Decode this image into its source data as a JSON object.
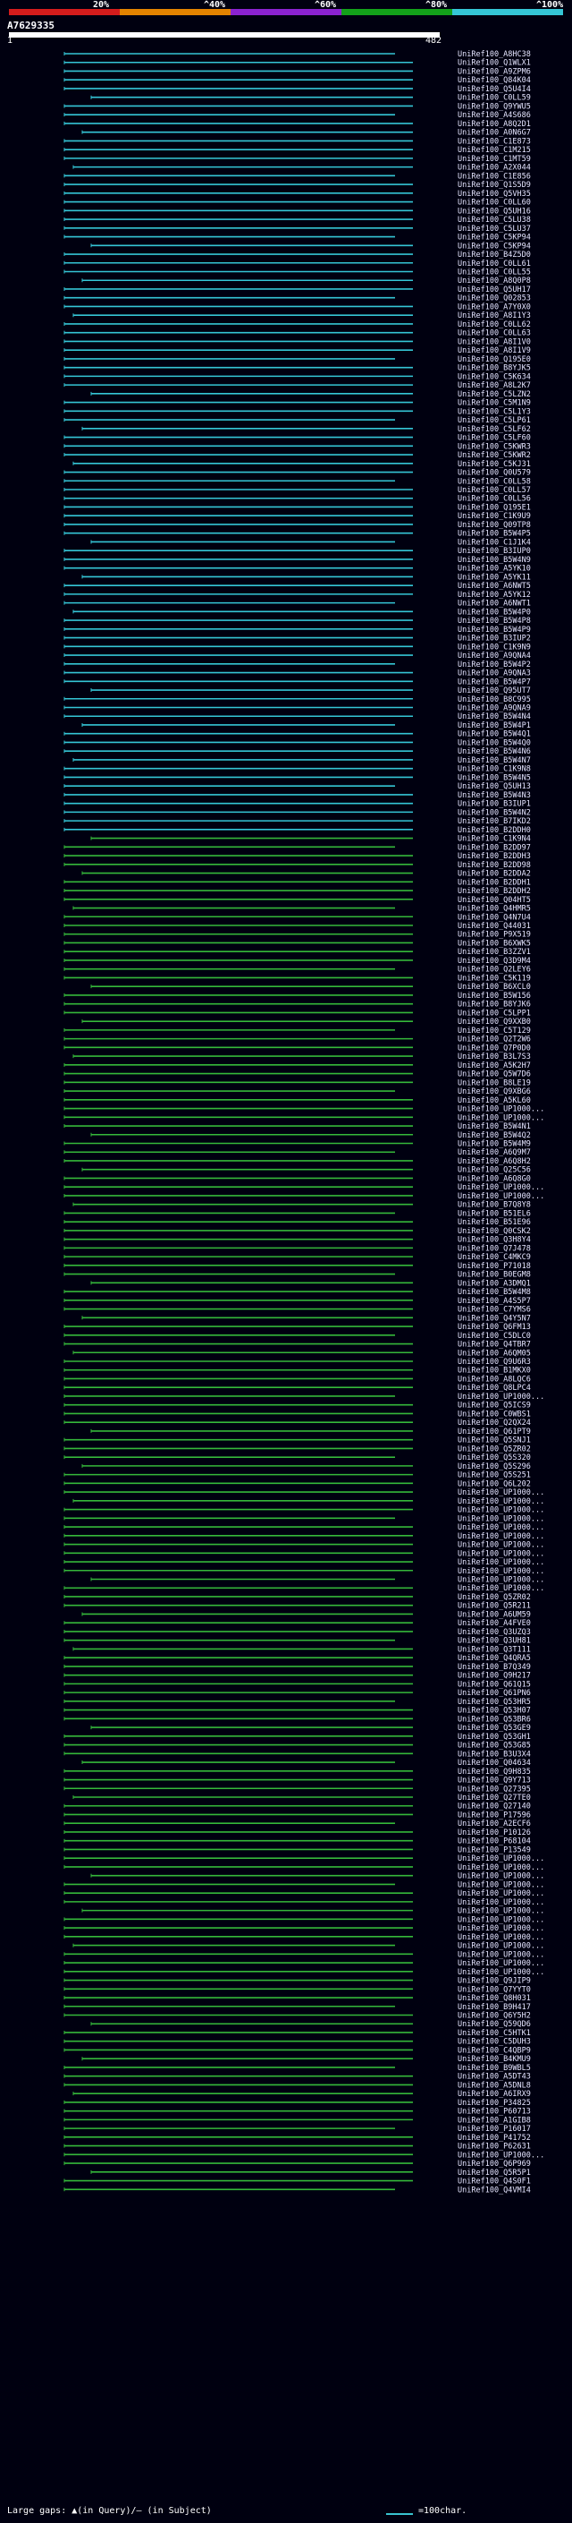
{
  "legend": [
    {
      "label": "20%",
      "color": "#d41c1c"
    },
    {
      "label": "^40%",
      "color": "#e38300"
    },
    {
      "label": "^60%",
      "color": "#8b22d0"
    },
    {
      "label": "^80%",
      "color": "#13a11a"
    },
    {
      "label": "^100%",
      "color": "#35c6d6"
    }
  ],
  "query": {
    "id": "A7629335",
    "start": "1",
    "end": "482"
  },
  "colors": {
    "cyan": "#35c6d6",
    "green": "#35b83a",
    "gap": "#ffff66"
  },
  "hits": [
    "UniRef100_A8HC38",
    "UniRef100_Q1WLX1",
    "UniRef100_A9ZPM6",
    "UniRef100_Q84K04",
    "UniRef100_Q5U4I4",
    "UniRef100_C0LL59",
    "UniRef100_Q9YWU5",
    "UniRef100_A4S686",
    "UniRef100_A8Q2D1",
    "UniRef100_A0N6G7",
    "UniRef100_C1E873",
    "UniRef100_C1M215",
    "UniRef100_C1MT59",
    "UniRef100_A2X044",
    "UniRef100_C1E856",
    "UniRef100_Q1S5D9",
    "UniRef100_Q5VH35",
    "UniRef100_C0LL60",
    "UniRef100_Q5UH16",
    "UniRef100_C5LU38",
    "UniRef100_C5LU37",
    "UniRef100_C5KP94",
    "UniRef100_C5KP94",
    "UniRef100_B4Z5D0",
    "UniRef100_C0LL61",
    "UniRef100_C0LL55",
    "UniRef100_A8Q0P8",
    "UniRef100_Q5UH17",
    "UniRef100_Q02853",
    "UniRef100_A7Y0X0",
    "UniRef100_A8I1Y3",
    "UniRef100_C0LL62",
    "UniRef100_C0LL63",
    "UniRef100_A8I1V0",
    "UniRef100_A8I1V9",
    "UniRef100_Q195E0",
    "UniRef100_B8YJK5",
    "UniRef100_C5K634",
    "UniRef100_A8L2K7",
    "UniRef100_C5LZN2",
    "UniRef100_C5M1N9",
    "UniRef100_C5L1Y3",
    "UniRef100_C5LP61",
    "UniRef100_C5LF62",
    "UniRef100_C5LF60",
    "UniRef100_C5KWR3",
    "UniRef100_C5KWR2",
    "UniRef100_C5KJ31",
    "UniRef100_Q0U579",
    "UniRef100_C0LL58",
    "UniRef100_C0LL57",
    "UniRef100_C0LL56",
    "UniRef100_Q195E1",
    "UniRef100_C1K9U9",
    "UniRef100_Q09TP8",
    "UniRef100_B5W4P5",
    "UniRef100_C1J1K4",
    "UniRef100_B3IUP0",
    "UniRef100_B5W4N9",
    "UniRef100_A5YK10",
    "UniRef100_A5YK11",
    "UniRef100_A6NWT5",
    "UniRef100_A5YK12",
    "UniRef100_A6NWT1",
    "UniRef100_B5W4P0",
    "UniRef100_B5W4P8",
    "UniRef100_B5W4P9",
    "UniRef100_B3IUP2",
    "UniRef100_C1K9N9",
    "UniRef100_A9QNA4",
    "UniRef100_B5W4P2",
    "UniRef100_A9QNA3",
    "UniRef100_B5W4P7",
    "UniRef100_Q95UT7",
    "UniRef100_B8C995",
    "UniRef100_A9QNA9",
    "UniRef100_B5W4N4",
    "UniRef100_B5W4P1",
    "UniRef100_B5W4Q1",
    "UniRef100_B5W4Q0",
    "UniRef100_B5W4N6",
    "UniRef100_B5W4N7",
    "UniRef100_C1K9N8",
    "UniRef100_B5W4N5",
    "UniRef100_Q5UH13",
    "UniRef100_B5W4N3",
    "UniRef100_B3IUP1",
    "UniRef100_B5W4N2",
    "UniRef100_B7IKD2",
    "UniRef100_B2DDH0",
    "UniRef100_C1K9N4",
    "UniRef100_B2DD97",
    "UniRef100_B2DDH3",
    "UniRef100_B2DD98",
    "UniRef100_B2DDA2",
    "UniRef100_B2DDH1",
    "UniRef100_B2DDH2",
    "UniRef100_Q04HT5",
    "UniRef100_Q4HMR5",
    "UniRef100_Q4N7U4",
    "UniRef100_Q44031",
    "UniRef100_P9X519",
    "UniRef100_B6XWK5",
    "UniRef100_B3ZZV1",
    "UniRef100_Q3D9M4",
    "UniRef100_Q2LEY6",
    "UniRef100_C5K119",
    "UniRef100_B6XCL0",
    "UniRef100_B5W156",
    "UniRef100_B8YJK6",
    "UniRef100_C5LPP1",
    "UniRef100_Q9XXB0",
    "UniRef100_C5T129",
    "UniRef100_Q2T2W6",
    "UniRef100_Q7P0D0",
    "UniRef100_B3L7S3",
    "UniRef100_A5K2H7",
    "UniRef100_Q5W7D6",
    "UniRef100_B8LE19",
    "UniRef100_Q9XBG6",
    "UniRef100_A5KL60",
    "UniRef100_UP1000...",
    "UniRef100_UP1000...",
    "UniRef100_B5W4N1",
    "UniRef100_B5W4Q2",
    "UniRef100_B5W4M9",
    "UniRef100_A6Q9M7",
    "UniRef100_A6Q8H2",
    "UniRef100_Q25C56",
    "UniRef100_A6Q8G0",
    "UniRef100_UP1000...",
    "UniRef100_UP1000...",
    "UniRef100_B7Q8Y8",
    "UniRef100_B51EL6",
    "UniRef100_B51E96",
    "UniRef100_Q0CSK2",
    "UniRef100_Q3H8Y4",
    "UniRef100_Q7J478",
    "UniRef100_C4MKC9",
    "UniRef100_P71018",
    "UniRef100_B0EGM8",
    "UniRef100_A3DMQ1",
    "UniRef100_B5W4M8",
    "UniRef100_A4S5P7",
    "UniRef100_C7YMS6",
    "UniRef100_Q4Y5N7",
    "UniRef100_Q6FM13",
    "UniRef100_C5DLC0",
    "UniRef100_Q4TBR7",
    "UniRef100_A6QM05",
    "UniRef100_Q9U6R3",
    "UniRef100_B1MKX0",
    "UniRef100_A8LQC6",
    "UniRef100_Q8LPC4",
    "UniRef100_UP1000...",
    "UniRef100_Q5ICS9",
    "UniRef100_C0WBS1",
    "UniRef100_Q2QX24",
    "UniRef100_Q61PT9",
    "UniRef100_Q5SNJ1",
    "UniRef100_Q5ZR02",
    "UniRef100_Q5S320",
    "UniRef100_Q5S296",
    "UniRef100_Q5S251",
    "UniRef100_Q6L202",
    "UniRef100_UP1000...",
    "UniRef100_UP1000...",
    "UniRef100_UP1000...",
    "UniRef100_UP1000...",
    "UniRef100_UP1000...",
    "UniRef100_UP1000...",
    "UniRef100_UP1000...",
    "UniRef100_UP1000...",
    "UniRef100_UP1000...",
    "UniRef100_UP1000...",
    "UniRef100_UP1000...",
    "UniRef100_UP1000...",
    "UniRef100_Q5ZR02",
    "UniRef100_Q5R211",
    "UniRef100_A6UM59",
    "UniRef100_A4FVE0",
    "UniRef100_Q3UZQ3",
    "UniRef100_Q3UH81",
    "UniRef100_Q3T111",
    "UniRef100_Q4QRA5",
    "UniRef100_B7Q349",
    "UniRef100_Q9H217",
    "UniRef100_Q61Q15",
    "UniRef100_Q61PN6",
    "UniRef100_Q53HR5",
    "UniRef100_Q53H07",
    "UniRef100_Q53BR6",
    "UniRef100_Q53GE9",
    "UniRef100_Q53GH1",
    "UniRef100_Q53G85",
    "UniRef100_B3U3X4",
    "UniRef100_Q04634",
    "UniRef100_Q9H835",
    "UniRef100_Q9Y713",
    "UniRef100_Q27395",
    "UniRef100_Q27TE0",
    "UniRef100_Q27140",
    "UniRef100_P17596",
    "UniRef100_A2ECF6",
    "UniRef100_P10126",
    "UniRef100_P68104",
    "UniRef100_P13549",
    "UniRef100_UP1000...",
    "UniRef100_UP1000...",
    "UniRef100_UP1000...",
    "UniRef100_UP1000...",
    "UniRef100_UP1000...",
    "UniRef100_UP1000...",
    "UniRef100_UP1000...",
    "UniRef100_UP1000...",
    "UniRef100_UP1000...",
    "UniRef100_UP1000...",
    "UniRef100_UP1000...",
    "UniRef100_UP1000...",
    "UniRef100_UP1000...",
    "UniRef100_UP1000...",
    "UniRef100_Q9JIP9",
    "UniRef100_Q7YYT0",
    "UniRef100_Q8H031",
    "UniRef100_B9H417",
    "UniRef100_Q6Y5H2",
    "UniRef100_Q59QD6",
    "UniRef100_C5HTK1",
    "UniRef100_C5DUH3",
    "UniRef100_C4QBP9",
    "UniRef100_B4KMU9",
    "UniRef100_B9WBL5",
    "UniRef100_A5DT43",
    "UniRef100_A5DNL8",
    "UniRef100_A6IRX9",
    "UniRef100_P34825",
    "UniRef100_P60713",
    "UniRef100_A1GIB8",
    "UniRef100_P16017",
    "UniRef100_P41752",
    "UniRef100_P62631",
    "UniRef100_UP1000...",
    "UniRef100_Q6P969",
    "UniRef100_Q5R5P1",
    "UniRef100_Q4S0F1",
    "UniRef100_Q4VMI4"
  ],
  "footer": {
    "gaps": "Large gaps: ▲(in Query)/– (in Subject)",
    "scale": "=100char."
  }
}
